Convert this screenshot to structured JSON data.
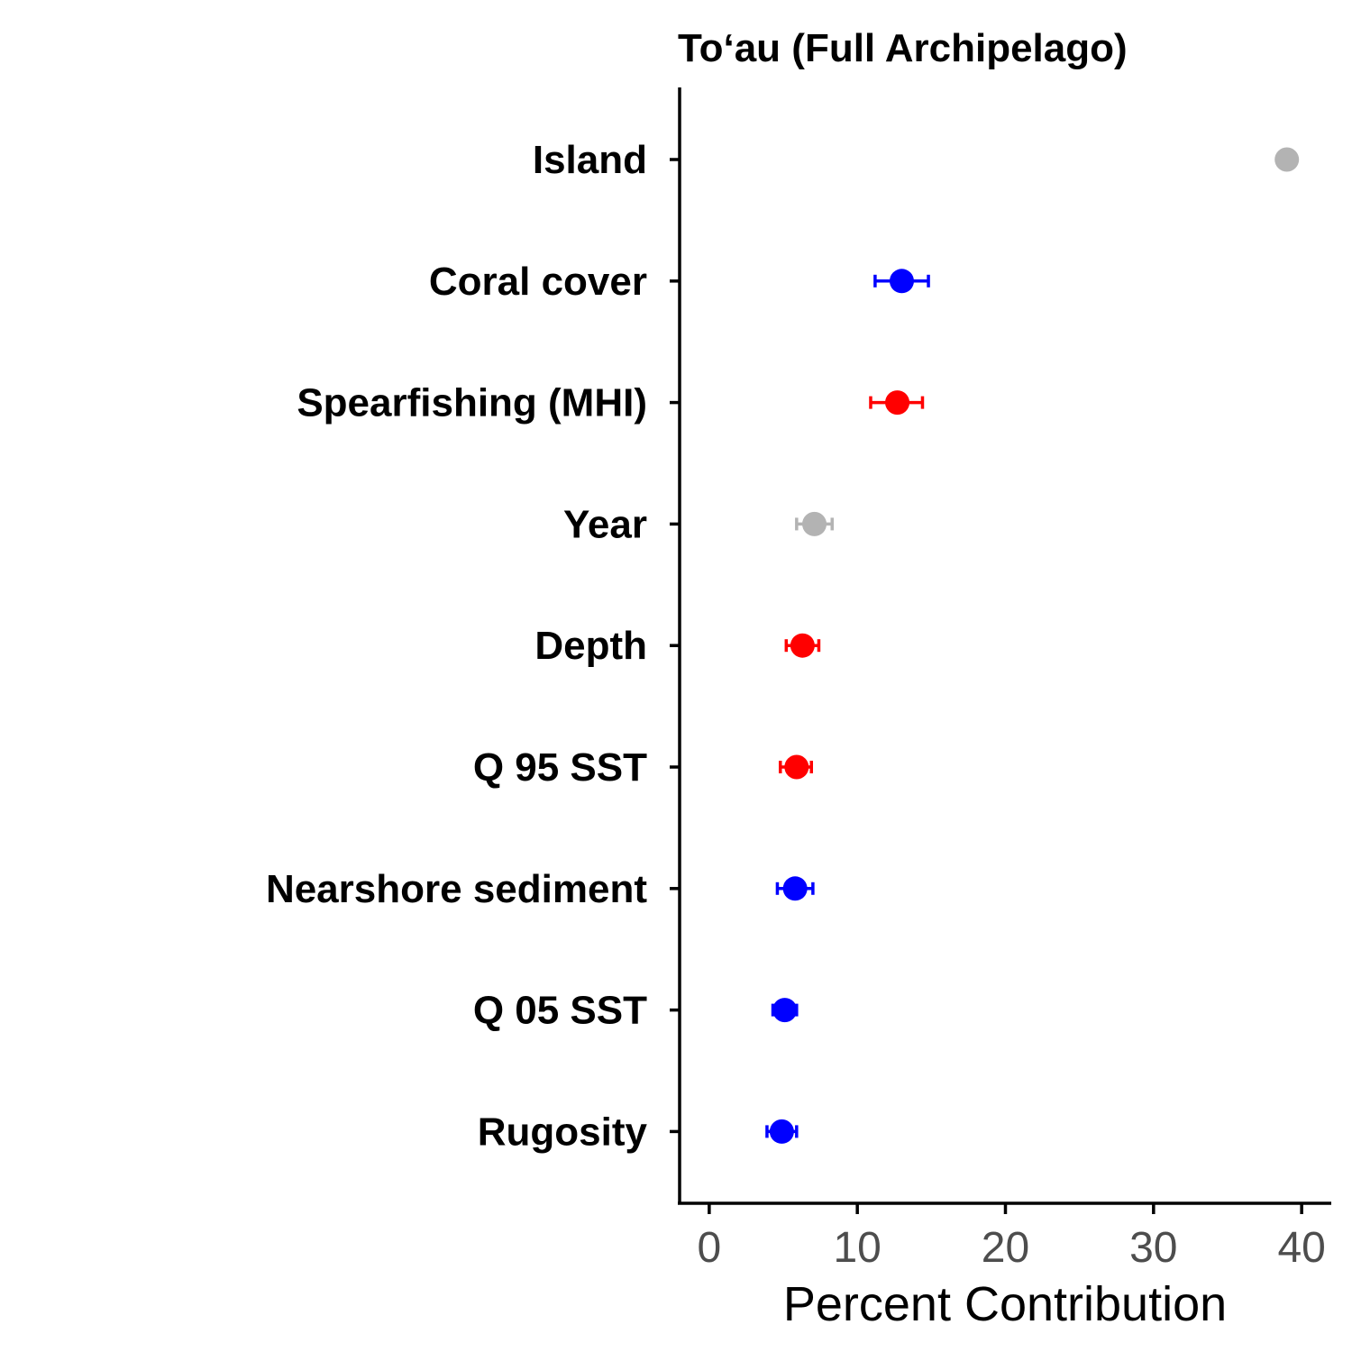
{
  "colors": {
    "positive": "#0000ff",
    "negative": "#ff0000",
    "neutral": "#b3b3b3",
    "axis": "#000000",
    "tick_label": "#4d4d4d"
  },
  "chart_data": {
    "type": "scatter",
    "title": "To‘au (Full Archipelago)",
    "xlabel": "Percent Contribution",
    "ylabel": "",
    "xlim": [
      -2,
      42
    ],
    "xticks": [
      0,
      10,
      20,
      30,
      40
    ],
    "grid": false,
    "legend": "none",
    "points": [
      {
        "label": "Island",
        "x": 39.0,
        "xmin": 39.0,
        "xmax": 39.0,
        "color": "neutral"
      },
      {
        "label": "Coral cover",
        "x": 13.0,
        "xmin": 11.2,
        "xmax": 14.8,
        "color": "positive"
      },
      {
        "label": "Spearfishing (MHI)",
        "x": 12.7,
        "xmin": 10.9,
        "xmax": 14.4,
        "color": "negative"
      },
      {
        "label": "Year",
        "x": 7.1,
        "xmin": 5.9,
        "xmax": 8.3,
        "color": "neutral"
      },
      {
        "label": "Depth",
        "x": 6.3,
        "xmin": 5.2,
        "xmax": 7.4,
        "color": "negative"
      },
      {
        "label": "Q 95 SST",
        "x": 5.9,
        "xmin": 4.8,
        "xmax": 6.9,
        "color": "negative"
      },
      {
        "label": "Nearshore sediment",
        "x": 5.8,
        "xmin": 4.6,
        "xmax": 7.0,
        "color": "positive"
      },
      {
        "label": "Q 05 SST",
        "x": 5.1,
        "xmin": 4.3,
        "xmax": 5.9,
        "color": "positive"
      },
      {
        "label": "Rugosity",
        "x": 4.9,
        "xmin": 3.9,
        "xmax": 5.9,
        "color": "positive"
      }
    ]
  }
}
